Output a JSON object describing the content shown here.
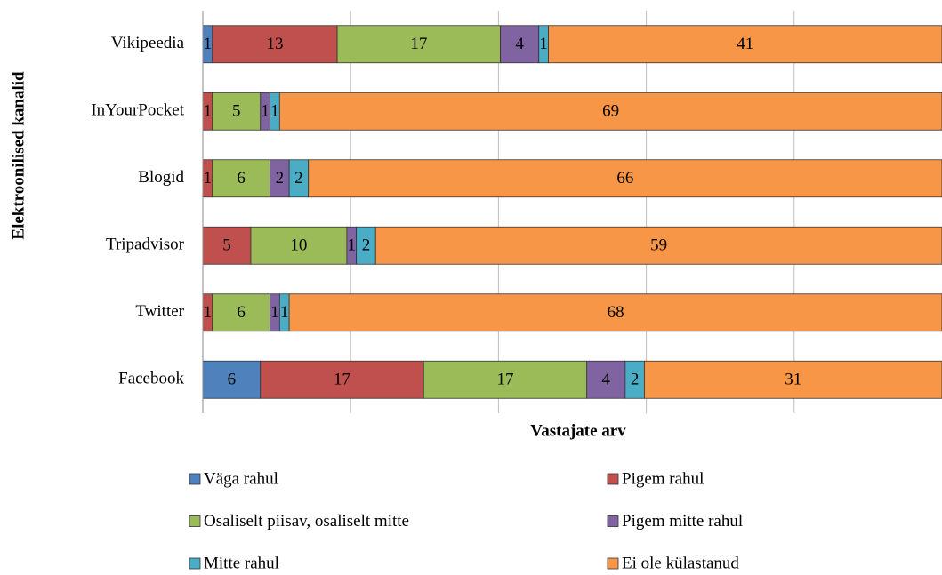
{
  "chart_data": {
    "type": "stacked-barh",
    "xlabel": "Vastajate arv",
    "ylabel": "Elektroonilised kanalid",
    "categories": [
      "Vikipeedia",
      "InYourPocket",
      "Blogid",
      "Tripadvisor",
      "Twitter",
      "Facebook"
    ],
    "series": [
      {
        "name": "Väga rahul",
        "color": "#4f81bd",
        "values": [
          1,
          0,
          0,
          0,
          0,
          6
        ]
      },
      {
        "name": "Pigem rahul",
        "color": "#c0504d",
        "values": [
          13,
          1,
          1,
          5,
          1,
          17
        ]
      },
      {
        "name": "Osaliselt piisav, osaliselt mitte",
        "color": "#9bbb59",
        "values": [
          17,
          5,
          6,
          10,
          6,
          17
        ]
      },
      {
        "name": "Pigem mitte rahul",
        "color": "#8064a2",
        "values": [
          4,
          1,
          2,
          1,
          1,
          4
        ]
      },
      {
        "name": "Mitte rahul",
        "color": "#4bacc6",
        "values": [
          1,
          1,
          2,
          2,
          1,
          2
        ]
      },
      {
        "name": "Ei ole külastanud",
        "color": "#f79646",
        "values": [
          41,
          69,
          66,
          59,
          68,
          31
        ]
      }
    ],
    "xlim": [
      0,
      77
    ],
    "xgrid": [
      0,
      15.4,
      30.8,
      46.2,
      61.6
    ],
    "grid": true
  }
}
